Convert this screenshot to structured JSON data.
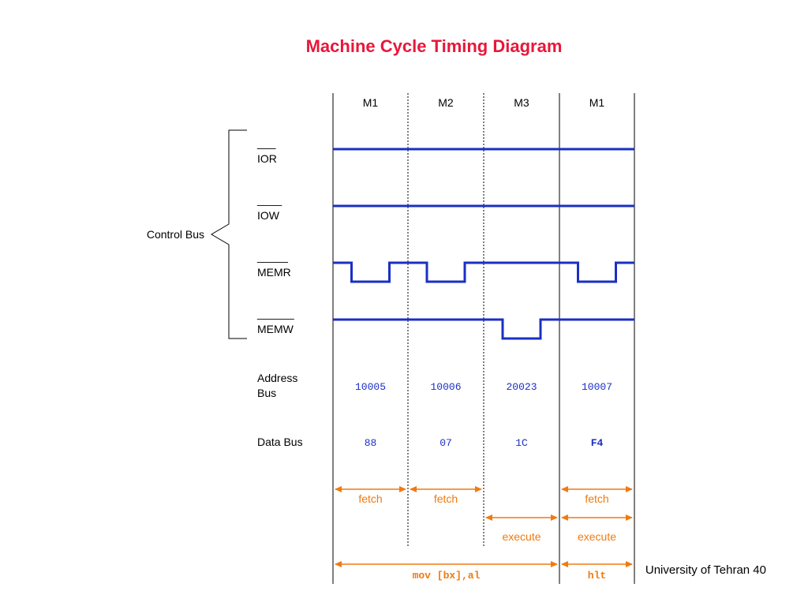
{
  "title": "Machine Cycle Timing Diagram",
  "columns": [
    "M1",
    "M2",
    "M3",
    "M1"
  ],
  "control_bus_label": "Control Bus",
  "signals": [
    {
      "overbar": "___",
      "name": "IOR",
      "low_in_cycles": []
    },
    {
      "overbar": "____",
      "name": "IOW",
      "low_in_cycles": []
    },
    {
      "overbar": "_____",
      "name": "MEMR",
      "low_in_cycles": [
        1,
        2,
        4
      ]
    },
    {
      "overbar": "______",
      "name": "MEMW",
      "low_in_cycles": [
        3
      ]
    }
  ],
  "address_bus": {
    "label_line1": "Address",
    "label_line2": "Bus",
    "values": [
      "10005",
      "10006",
      "20023",
      "10007"
    ]
  },
  "data_bus": {
    "label": "Data Bus",
    "values": [
      "88",
      "07",
      "1C",
      "F4"
    ]
  },
  "phases": {
    "fetch_label": "fetch",
    "execute_label": "execute",
    "fetch_cycles": [
      1,
      2,
      4
    ],
    "execute_cycles": [
      3,
      4
    ]
  },
  "instructions": [
    {
      "label": "mov [bx],al",
      "from_cycle": 1,
      "to_cycle": 3
    },
    {
      "label": "hlt",
      "from_cycle": 4,
      "to_cycle": 4
    }
  ],
  "footer": "University of Tehran 40",
  "colors": {
    "title": "#e8173a",
    "signal": "#1a2fc4",
    "value": "#1a2fc4",
    "phase": "#f07a10",
    "grid": "#333333"
  }
}
